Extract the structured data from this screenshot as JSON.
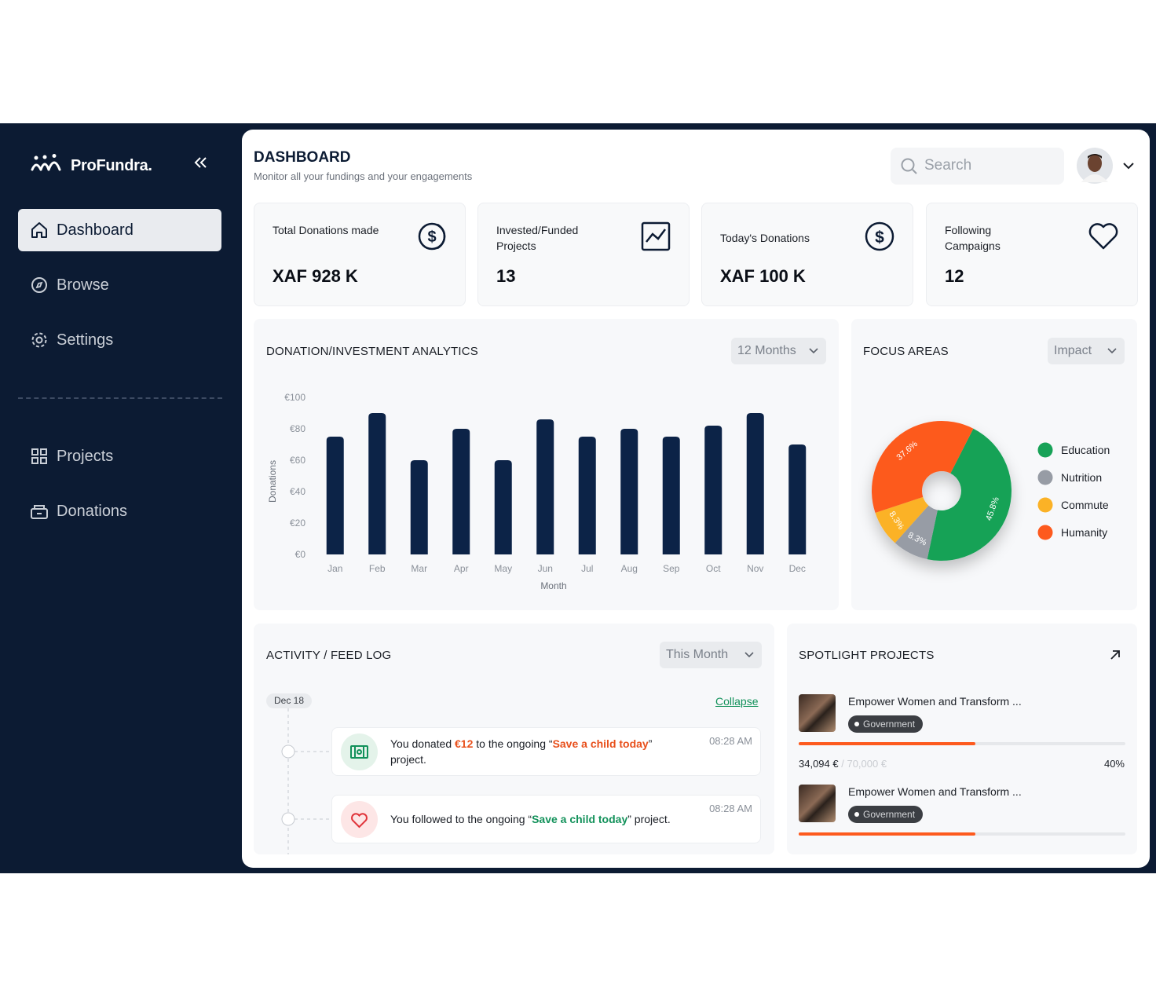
{
  "sidebar": {
    "logo": "ProFundra.",
    "nav": [
      "Dashboard",
      "Browse",
      "Settings"
    ],
    "nav2": [
      "Projects",
      "Donations"
    ]
  },
  "header": {
    "title": "DASHBOARD",
    "subtitle": "Monitor all your fundings and your engagements",
    "search": "Search"
  },
  "stats": [
    {
      "label": "Total Donations made",
      "value": "XAF 928 K"
    },
    {
      "label": "Invested/Funded Projects",
      "value": 13
    },
    {
      "label": "Today's Donations",
      "value": "XAF 100 K"
    },
    {
      "label": "Following Campaigns",
      "value": 12
    }
  ],
  "analytics": {
    "title": "DONATION/INVESTMENT ANALYTICS",
    "filter": "12 Months"
  },
  "focus": {
    "title": "FOCUS AREAS",
    "filter": "Impact"
  },
  "chart_data": [
    {
      "type": "bar",
      "x_label": "Month",
      "y_label": "Donations",
      "categories": [
        "Jan",
        "Feb",
        "Mar",
        "Apr",
        "May",
        "Jun",
        "Jul",
        "Aug",
        "Sep",
        "Oct",
        "Nov",
        "Dec"
      ],
      "values": [
        75,
        90,
        60,
        80,
        60,
        86,
        75,
        80,
        75,
        82,
        90,
        70
      ],
      "color": "#0c2347",
      "ylim": [
        0,
        100
      ],
      "yticks": [
        {
          "value": 0,
          "label": "€0"
        },
        {
          "value": 20,
          "label": "€20"
        },
        {
          "value": 40,
          "label": "€40"
        },
        {
          "value": 60,
          "label": "€60"
        },
        {
          "value": 80,
          "label": "€80"
        },
        {
          "value": 100,
          "label": "€100"
        }
      ],
      "grid": false
    },
    {
      "type": "pie",
      "categories": [
        "Education",
        "Nutrition",
        "Commute",
        "Humanity"
      ],
      "values": [
        45.8,
        8.3,
        8.3,
        37.6
      ],
      "value_labels": [
        "45.8%",
        "8.3%",
        "8.3%",
        "37.6%"
      ],
      "colors": [
        "#17a257",
        "#979ca5",
        "#fbb226",
        "#fd5a1e"
      ],
      "donut": true
    }
  ],
  "activity": {
    "title": "ACTIVITY / FEED LOG",
    "filter": "This Month",
    "date": "Dec 18",
    "collapse": "Collapse",
    "items": [
      {
        "parts": [
          "You donated ",
          "€12",
          " to the ongoing “",
          "Save a child today",
          "” project."
        ],
        "time": "08:28 AM"
      },
      {
        "parts": [
          "You followed to the ongoing “",
          "Save a child today",
          "” project."
        ],
        "time": "08:28 AM"
      }
    ]
  },
  "spotlight": {
    "title": "SPOTLIGHT PROJECTS",
    "items": [
      {
        "title": "Empower Women and Transform ...",
        "tag": "Government",
        "raised": "34,094 €",
        "goal": "/ 70,000 €",
        "percent": "40%"
      },
      {
        "title": "Empower Women and Transform ...",
        "tag": "Government"
      }
    ]
  }
}
